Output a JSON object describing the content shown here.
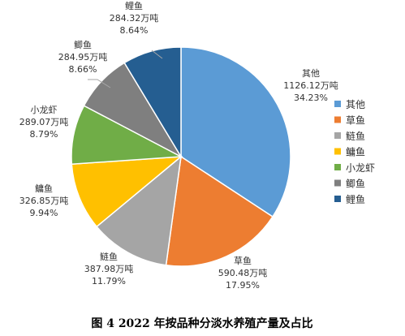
{
  "chart_data": {
    "type": "pie",
    "caption": "图 4 2022 年按品种分淡水养殖产量及占比",
    "unit": "万吨",
    "slices": [
      {
        "name": "其他",
        "value": 1126.12,
        "value_label": "1126.12万吨",
        "percent_label": "34.23%",
        "color": "#5B9BD5"
      },
      {
        "name": "草鱼",
        "value": 590.48,
        "value_label": "590.48万吨",
        "percent_label": "17.95%",
        "color": "#ED7D31"
      },
      {
        "name": "鲢鱼",
        "value": 387.98,
        "value_label": "387.98万吨",
        "percent_label": "11.79%",
        "color": "#A5A5A5"
      },
      {
        "name": "鳙鱼",
        "value": 326.85,
        "value_label": "326.85万吨",
        "percent_label": "9.94%",
        "color": "#FFC000"
      },
      {
        "name": "小龙虾",
        "value": 289.07,
        "value_label": "289.07万吨",
        "percent_label": "8.79%",
        "color": "#70AD47"
      },
      {
        "name": "鲫鱼",
        "value": 284.95,
        "value_label": "284.95万吨",
        "percent_label": "8.66%",
        "color": "#7F7F7F"
      },
      {
        "name": "鲤鱼",
        "value": 284.32,
        "value_label": "284.32万吨",
        "percent_label": "8.64%",
        "color": "#255E91"
      }
    ],
    "legend_position": "right"
  }
}
